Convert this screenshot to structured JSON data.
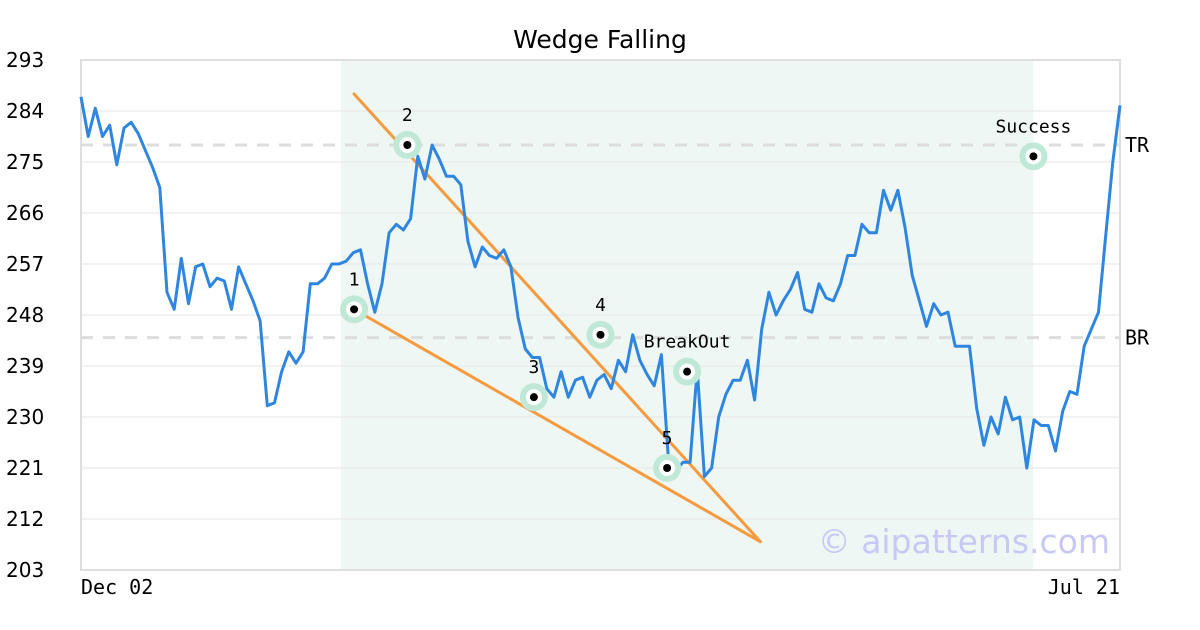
{
  "colors": {
    "price_line": "#2f86e0",
    "wedge_line": "#f59a3e",
    "pattern_shade": "#eef7f3",
    "marker_halo": "#bfe9d6",
    "marker_dot": "#000000",
    "level_line": "#dddddd",
    "grid": "#e6e6e6",
    "frame": "#dedede",
    "watermark": "#c8c8f5"
  },
  "watermark": "© aipatterns.com",
  "chart_data": {
    "type": "line",
    "title": "Wedge Falling",
    "xlabel": "",
    "ylabel": "",
    "ylim": [
      203,
      293
    ],
    "yticks": [
      "203",
      "212",
      "221",
      "230",
      "239",
      "248",
      "257",
      "266",
      "275",
      "284",
      "293"
    ],
    "x_tick_labels": [
      {
        "index": 0,
        "label": "Dec 02"
      },
      {
        "index": 156,
        "label": "Jul 21"
      }
    ],
    "x_range": [
      0,
      156
    ],
    "grid": "horizontal",
    "series": [
      {
        "values": [
          286.5,
          279.5,
          284.5,
          279.5,
          281.5,
          274.5,
          281.0,
          282.0,
          280.0,
          277.0,
          274.0,
          270.5,
          252.0,
          249.0,
          258.0,
          250.0,
          256.5,
          257.0,
          253.0,
          254.5,
          254.0,
          249.0,
          256.5,
          253.5,
          250.5,
          247.0,
          232.0,
          232.5,
          238.0,
          241.5,
          239.5,
          241.5,
          253.5,
          253.5,
          254.5,
          257.0,
          257.0,
          257.5,
          259.0,
          259.5,
          253.5,
          248.5,
          253.5,
          262.5,
          264.0,
          263.0,
          265.0,
          276.0,
          272.0,
          278.0,
          275.5,
          272.5,
          272.5,
          271.0,
          261.0,
          256.5,
          260.0,
          258.5,
          258.0,
          259.5,
          256.5,
          247.5,
          242.0,
          240.5,
          240.5,
          235.0,
          233.5,
          238.0,
          233.5,
          236.5,
          237.0,
          233.5,
          236.5,
          237.5,
          235.0,
          240.0,
          238.0,
          244.5,
          240.0,
          237.5,
          235.5,
          241.0,
          222.0,
          220.5,
          222.0,
          222.0,
          238.5,
          219.5,
          221.0,
          230.0,
          234.0,
          236.5,
          236.5,
          240.0,
          233.0,
          245.5,
          252.0,
          248.0,
          250.5,
          252.5,
          255.5,
          249.0,
          248.5,
          253.5,
          251.0,
          250.5,
          253.5,
          258.5,
          258.5,
          264.0,
          262.5,
          262.5,
          270.0,
          266.5,
          270.0,
          263.5,
          255.0,
          250.5,
          246.0,
          250.0,
          248.0,
          248.5,
          242.5,
          242.5,
          242.5,
          231.5,
          225.0,
          230.0,
          227.0,
          233.5,
          229.5,
          230.0,
          221.0,
          229.5,
          228.5,
          228.5,
          224.0,
          231.0,
          234.5,
          234.0,
          242.5,
          245.5,
          248.5,
          262.0,
          275.0,
          285.0
        ]
      }
    ],
    "pattern_region": {
      "x_start": 39,
      "x_end": 143
    },
    "wedge_lines": [
      {
        "points": [
          [
            41,
            287
          ],
          [
            102,
            208
          ]
        ]
      },
      {
        "points": [
          [
            41,
            249
          ],
          [
            102,
            208
          ]
        ]
      }
    ],
    "reference_levels": [
      {
        "label": "TR",
        "y": 278
      },
      {
        "label": "BR",
        "y": 244
      }
    ],
    "annotations": [
      {
        "label": "1",
        "x": 41,
        "y": 249,
        "label_pos": "above"
      },
      {
        "label": "2",
        "x": 49,
        "y": 278,
        "label_pos": "above"
      },
      {
        "label": "3",
        "x": 68,
        "y": 233.5,
        "label_pos": "above"
      },
      {
        "label": "4",
        "x": 78,
        "y": 244.5,
        "label_pos": "above"
      },
      {
        "label": "5",
        "x": 88,
        "y": 221,
        "label_pos": "above"
      },
      {
        "label": "BreakOut",
        "x": 91,
        "y": 238,
        "label_pos": "above"
      },
      {
        "label": "Success",
        "x": 143,
        "y": 276,
        "label_pos": "above"
      }
    ]
  }
}
